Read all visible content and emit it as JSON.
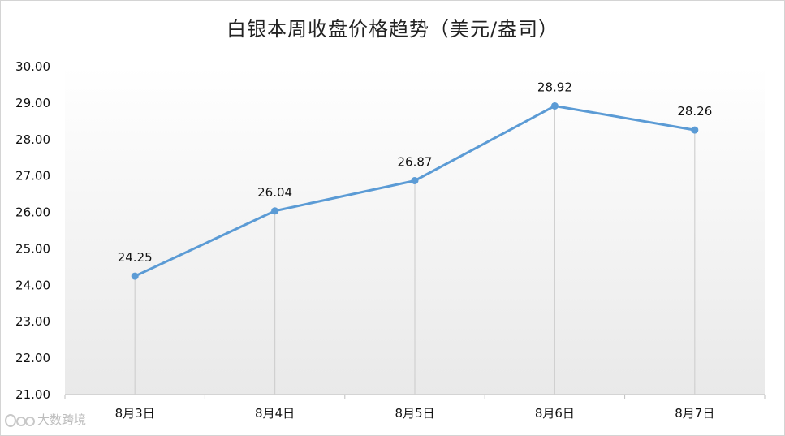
{
  "chart_data": {
    "type": "line",
    "title": "白银本周收盘价格趋势（美元/盎司）",
    "categories": [
      "8月3日",
      "8月4日",
      "8月5日",
      "8月6日",
      "8月7日"
    ],
    "series": [
      {
        "values": [
          24.25,
          26.04,
          26.87,
          28.92,
          28.26
        ]
      }
    ],
    "data_labels": [
      "24.25",
      "26.04",
      "26.87",
      "28.92",
      "28.26"
    ],
    "y_ticks": [
      "21.00",
      "22.00",
      "23.00",
      "24.00",
      "25.00",
      "26.00",
      "27.00",
      "28.00",
      "29.00",
      "30.00"
    ],
    "ylim": [
      21,
      30
    ],
    "xlabel": "",
    "ylabel": "",
    "grid": false,
    "drop_lines": true,
    "legend": "none",
    "line_color": "#5b9bd5",
    "background_gradient": [
      "#ffffff",
      "#e9e9e9"
    ]
  },
  "watermark": {
    "logo_text": "",
    "text": "大数跨境"
  }
}
